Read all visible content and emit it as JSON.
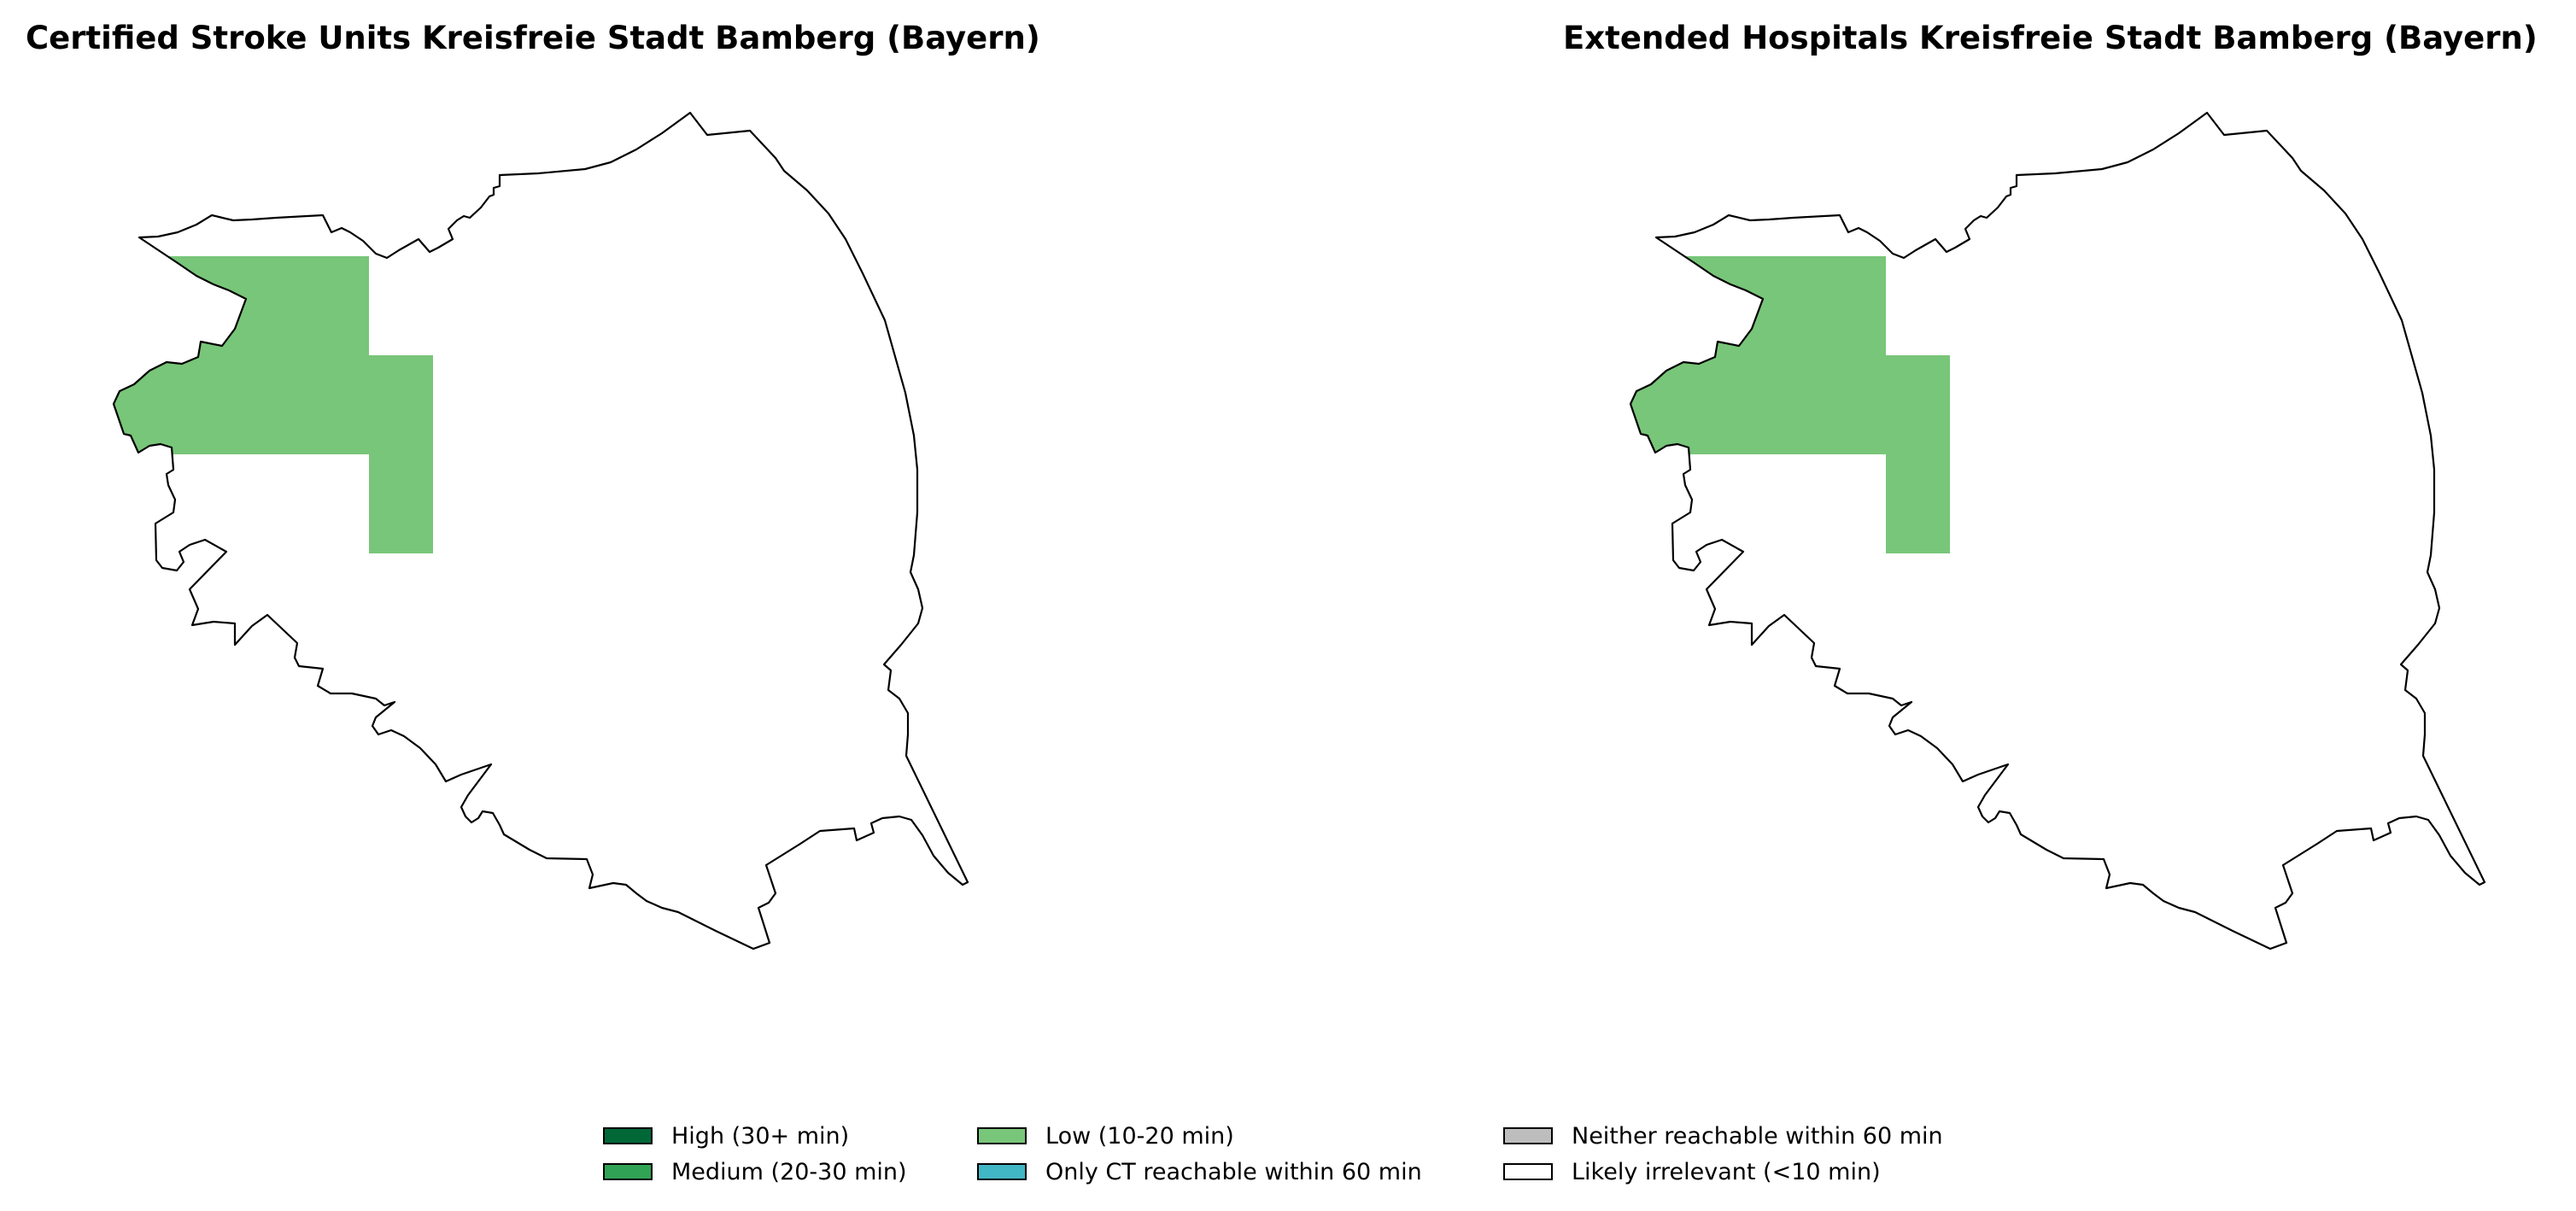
{
  "panels": [
    {
      "title": "Certified Stroke Units Kreisfreie Stadt Bamberg (Bayern)"
    },
    {
      "title": "Extended Hospitals Kreisfreie Stadt Bamberg (Bayern)"
    }
  ],
  "legend": {
    "items": [
      {
        "label": "High (30+ min)",
        "color": "#006837"
      },
      {
        "label": "Medium (20-30 min)",
        "color": "#31a354"
      },
      {
        "label": "Low (10-20 min)",
        "color": "#78c679"
      },
      {
        "label": "Only CT reachable within 60 min",
        "color": "#41b6c4"
      },
      {
        "label": "Neither reachable within 60 min",
        "color": "#bdbdbd"
      },
      {
        "label": "Likely irrelevant (<10 min)",
        "color": "#ffffff"
      }
    ]
  },
  "colors": {
    "low_coverage_fill": "#78c679",
    "boundary_stroke": "#000000"
  }
}
